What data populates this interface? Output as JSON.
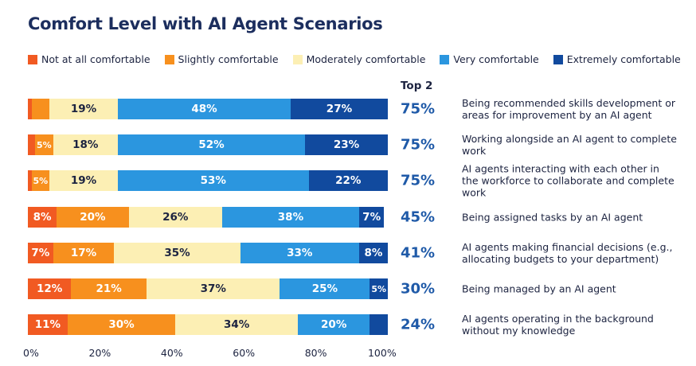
{
  "chart_data": {
    "type": "stacked-bar-horizontal",
    "title": "Comfort Level with AI Agent Scenarios",
    "categories": [
      "Being recommended skills development or areas for improvement by an AI agent",
      "Working alongside an AI agent to complete work",
      "AI agents interacting with each other in the workforce to collaborate and complete work",
      "Being assigned tasks by an AI agent",
      "AI agents making financial decisions (e.g., allocating budgets to your department)",
      "Being managed by an AI agent",
      "AI agents operating in the background without my knowledge"
    ],
    "series": [
      {
        "name": "Not at all comfortable",
        "color": "#f15a22",
        "text_color": "#ffffff",
        "values": [
          1,
          2,
          1,
          8,
          7,
          12,
          11
        ],
        "value_labels": [
          null,
          null,
          null,
          "8%",
          "7%",
          "12%",
          "11%"
        ]
      },
      {
        "name": "Slightly comfortable",
        "color": "#f7901e",
        "text_color": "#ffffff",
        "values": [
          5,
          5,
          5,
          20,
          17,
          21,
          30
        ],
        "value_labels": [
          null,
          "5%",
          "5%",
          "20%",
          "17%",
          "21%",
          "30%"
        ]
      },
      {
        "name": "Moderately comfortable",
        "color": "#fcefb4",
        "text_color": "#1c2340",
        "values": [
          19,
          18,
          19,
          26,
          35,
          37,
          34
        ],
        "value_labels": [
          "19%",
          "18%",
          "19%",
          "26%",
          "35%",
          "37%",
          "34%"
        ]
      },
      {
        "name": "Very comfortable",
        "color": "#2b96df",
        "text_color": "#ffffff",
        "values": [
          48,
          52,
          53,
          38,
          33,
          25,
          20
        ],
        "value_labels": [
          "48%",
          "52%",
          "53%",
          "38%",
          "33%",
          "25%",
          "20%"
        ]
      },
      {
        "name": "Extremely comfortable",
        "color": "#114a9e",
        "text_color": "#ffffff",
        "values": [
          27,
          23,
          22,
          7,
          8,
          5,
          5
        ],
        "value_labels": [
          "27%",
          "23%",
          "22%",
          "7%",
          "8%",
          "5%",
          null
        ]
      }
    ],
    "top2": {
      "title": "Top 2",
      "values": [
        75,
        75,
        75,
        45,
        41,
        30,
        24
      ],
      "value_labels": [
        "75%",
        "75%",
        "75%",
        "45%",
        "41%",
        "30%",
        "24%"
      ]
    },
    "xlim": [
      0,
      100
    ],
    "xticks": [
      {
        "value": 0,
        "label": "0%"
      },
      {
        "value": 20,
        "label": "20%"
      },
      {
        "value": 40,
        "label": "40%"
      },
      {
        "value": 60,
        "label": "60%"
      },
      {
        "value": 80,
        "label": "80%"
      },
      {
        "value": 100,
        "label": "100%"
      }
    ],
    "legend": "top"
  }
}
